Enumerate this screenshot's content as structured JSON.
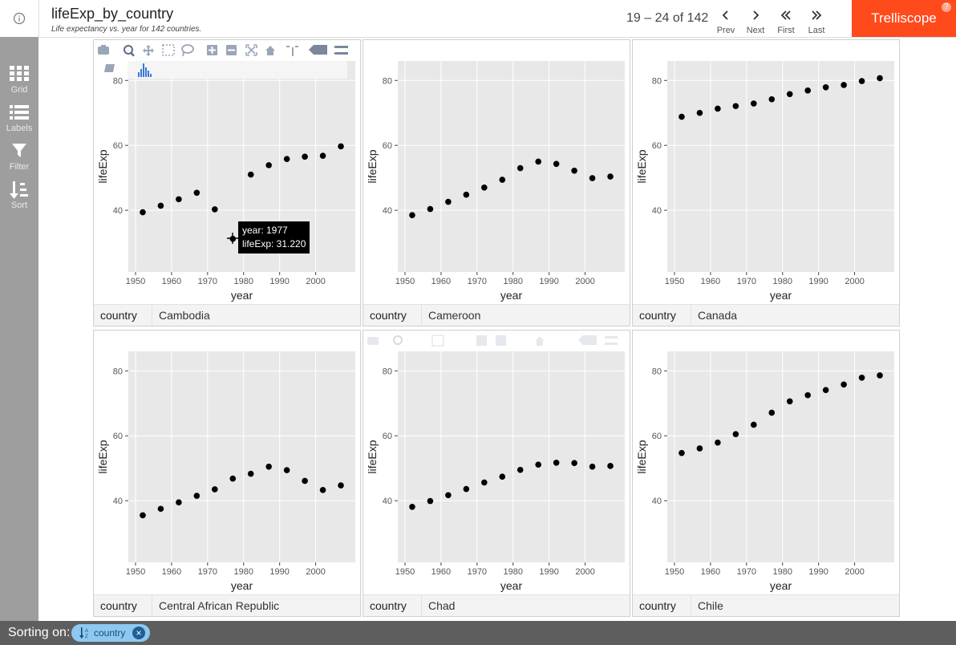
{
  "header": {
    "title": "lifeExp_by_country",
    "subtitle": "Life expectancy vs. year for 142 countries.",
    "page_info": "19 – 24 of 142",
    "nav": [
      {
        "label": "Prev",
        "icon": "chevron-left-icon"
      },
      {
        "label": "Next",
        "icon": "chevron-right-icon"
      },
      {
        "label": "First",
        "icon": "double-chevron-left-icon"
      },
      {
        "label": "Last",
        "icon": "double-chevron-right-icon"
      }
    ],
    "brand": "Trelliscope",
    "help": "?"
  },
  "sidebar": [
    {
      "label": "Grid",
      "icon": "grid-icon"
    },
    {
      "label": "Labels",
      "icon": "list-icon"
    },
    {
      "label": "Filter",
      "icon": "filter-icon"
    },
    {
      "label": "Sort",
      "icon": "sort-icon"
    }
  ],
  "footer": {
    "sorting_label": "Sorting on:",
    "chip_label": "country",
    "chip_remove": "×"
  },
  "tooltip": {
    "line1": "year: 1977",
    "line2": "lifeExp: 31.220"
  },
  "colors": {
    "brand": "#ff4a1c",
    "sidebar": "#9e9e9e",
    "footer": "#5e5e5e",
    "chip": "#8ec8f2",
    "plot_bg": "#e8e8e8"
  },
  "chart_data": [
    {
      "type": "scatter",
      "xlabel": "year",
      "ylabel": "lifeExp",
      "xlim": [
        1948,
        2011
      ],
      "ylim": [
        21,
        86
      ],
      "xticks": [
        1950,
        1960,
        1970,
        1980,
        1990,
        2000
      ],
      "yticks": [
        40,
        60,
        80
      ],
      "cog_name": "country",
      "cog_value": "Cambodia",
      "x": [
        1952,
        1957,
        1962,
        1967,
        1972,
        1977,
        1982,
        1987,
        1992,
        1997,
        2002,
        2007
      ],
      "y": [
        39.4,
        41.4,
        43.4,
        45.4,
        40.3,
        31.2,
        51.0,
        53.9,
        55.8,
        56.5,
        56.8,
        59.7
      ]
    },
    {
      "type": "scatter",
      "xlabel": "year",
      "ylabel": "lifeExp",
      "xlim": [
        1948,
        2011
      ],
      "ylim": [
        21,
        86
      ],
      "xticks": [
        1950,
        1960,
        1970,
        1980,
        1990,
        2000
      ],
      "yticks": [
        40,
        60,
        80
      ],
      "cog_name": "country",
      "cog_value": "Cameroon",
      "x": [
        1952,
        1957,
        1962,
        1967,
        1972,
        1977,
        1982,
        1987,
        1992,
        1997,
        2002,
        2007
      ],
      "y": [
        38.5,
        40.4,
        42.6,
        44.8,
        47.0,
        49.4,
        53.0,
        55.0,
        54.3,
        52.2,
        49.9,
        50.4
      ]
    },
    {
      "type": "scatter",
      "xlabel": "year",
      "ylabel": "lifeExp",
      "xlim": [
        1948,
        2011
      ],
      "ylim": [
        21,
        86
      ],
      "xticks": [
        1950,
        1960,
        1970,
        1980,
        1990,
        2000
      ],
      "yticks": [
        40,
        60,
        80
      ],
      "cog_name": "country",
      "cog_value": "Canada",
      "x": [
        1952,
        1957,
        1962,
        1967,
        1972,
        1977,
        1982,
        1987,
        1992,
        1997,
        2002,
        2007
      ],
      "y": [
        68.8,
        70.0,
        71.3,
        72.1,
        72.9,
        74.2,
        75.8,
        76.9,
        77.9,
        78.6,
        79.8,
        80.7
      ]
    },
    {
      "type": "scatter",
      "xlabel": "year",
      "ylabel": "lifeExp",
      "xlim": [
        1948,
        2011
      ],
      "ylim": [
        21,
        86
      ],
      "xticks": [
        1950,
        1960,
        1970,
        1980,
        1990,
        2000
      ],
      "yticks": [
        40,
        60,
        80
      ],
      "cog_name": "country",
      "cog_value": "Central African Republic",
      "x": [
        1952,
        1957,
        1962,
        1967,
        1972,
        1977,
        1982,
        1987,
        1992,
        1997,
        2002,
        2007
      ],
      "y": [
        35.5,
        37.5,
        39.5,
        41.5,
        43.5,
        46.8,
        48.3,
        50.5,
        49.4,
        46.1,
        43.3,
        44.7
      ]
    },
    {
      "type": "scatter",
      "xlabel": "year",
      "ylabel": "lifeExp",
      "xlim": [
        1948,
        2011
      ],
      "ylim": [
        21,
        86
      ],
      "xticks": [
        1950,
        1960,
        1970,
        1980,
        1990,
        2000
      ],
      "yticks": [
        40,
        60,
        80
      ],
      "cog_name": "country",
      "cog_value": "Chad",
      "x": [
        1952,
        1957,
        1962,
        1967,
        1972,
        1977,
        1982,
        1987,
        1992,
        1997,
        2002,
        2007
      ],
      "y": [
        38.1,
        39.9,
        41.7,
        43.6,
        45.6,
        47.4,
        49.5,
        51.1,
        51.7,
        51.6,
        50.5,
        50.7
      ]
    },
    {
      "type": "scatter",
      "xlabel": "year",
      "ylabel": "lifeExp",
      "xlim": [
        1948,
        2011
      ],
      "ylim": [
        21,
        86
      ],
      "xticks": [
        1950,
        1960,
        1970,
        1980,
        1990,
        2000
      ],
      "yticks": [
        40,
        60,
        80
      ],
      "cog_name": "country",
      "cog_value": "Chile",
      "x": [
        1952,
        1957,
        1962,
        1967,
        1972,
        1977,
        1982,
        1987,
        1992,
        1997,
        2002,
        2007
      ],
      "y": [
        54.7,
        56.1,
        57.9,
        60.5,
        63.4,
        67.1,
        70.6,
        72.5,
        74.1,
        75.8,
        77.9,
        78.6
      ]
    }
  ]
}
